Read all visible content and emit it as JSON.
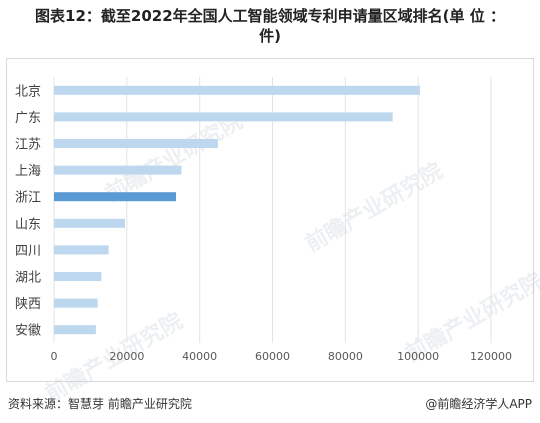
{
  "title_line1": "图表12：截至2022年全国人工智能领域专利申请量区域排名(单 位 ：",
  "title_line2": "件)",
  "source": "资料来源：智慧芽 前瞻产业研究院",
  "brand": "@前瞻经济学人APP",
  "watermark_text": "前瞻产业研究院",
  "chart_data": {
    "type": "bar",
    "orientation": "horizontal",
    "categories": [
      "北京",
      "广东",
      "江苏",
      "上海",
      "浙江",
      "山东",
      "四川",
      "湖北",
      "陕西",
      "安徽"
    ],
    "values": [
      100500,
      93000,
      45000,
      35000,
      33500,
      19500,
      15000,
      13000,
      12000,
      11500
    ],
    "highlight_index": 4,
    "bar_color": "#bdd7ee",
    "highlight_color": "#5b9bd5",
    "xlim": [
      0,
      120000
    ],
    "xticks": [
      "0",
      "20000",
      "40000",
      "60000",
      "80000",
      "100000",
      "120000"
    ],
    "grid": true
  }
}
